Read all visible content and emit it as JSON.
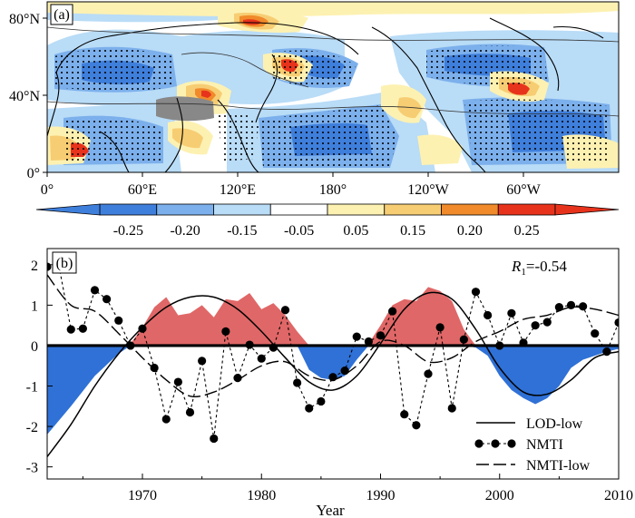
{
  "chart_data": [
    {
      "type": "heatmap",
      "panel_label": "(a)",
      "lat_tick_labels": [
        "0°",
        "40°N",
        "80°N"
      ],
      "lon_tick_labels": [
        "0°",
        "60°E",
        "120°E",
        "180°",
        "120°W",
        "60°W"
      ],
      "colorbar_labels": [
        "-0.25",
        "-0.20",
        "-0.15",
        "-0.05",
        "0.05",
        "0.15",
        "0.20",
        "0.25"
      ],
      "colorbar_colors": [
        "#3f7fdc",
        "#7cb0ec",
        "#b9dcf7",
        "#ffffff",
        "#fdf1b2",
        "#f7cd73",
        "#f08a2b",
        "#e8331c"
      ],
      "colors": {
        "land_outline": "#000000",
        "missing": "#888888",
        "stipple": "#000000"
      }
    },
    {
      "type": "line",
      "panel_label": "(b)",
      "annotation": {
        "prefix": "R",
        "subscript": "1",
        "text": "=-0.54"
      },
      "xlabel": "Year",
      "xlim": [
        1962,
        2010
      ],
      "ylim": [
        -3.3,
        2.4
      ],
      "x_tick_labels": [
        "1970",
        "1980",
        "1990",
        "2000",
        "2010"
      ],
      "y_tick_labels": [
        "-3",
        "-2",
        "-1",
        "0",
        "1",
        "2"
      ],
      "legend": [
        "LOD-low",
        "NMTI",
        "NMTI-low"
      ],
      "colors": {
        "positive_fill": "#e06767",
        "negative_fill": "#2f71d6",
        "line": "#000000"
      },
      "series": [
        {
          "name": "NMTI",
          "x": [
            1962,
            1963,
            1964,
            1965,
            1966,
            1967,
            1968,
            1969,
            1970,
            1971,
            1972,
            1973,
            1974,
            1975,
            1976,
            1977,
            1978,
            1979,
            1980,
            1981,
            1982,
            1983,
            1984,
            1985,
            1986,
            1987,
            1988,
            1989,
            1990,
            1991,
            1992,
            1993,
            1994,
            1995,
            1996,
            1997,
            1998,
            1999,
            2000,
            2001,
            2002,
            2003,
            2004,
            2005,
            2006,
            2007,
            2008,
            2009,
            2010
          ],
          "values": [
            1.95,
            1.95,
            0.4,
            0.42,
            1.37,
            1.15,
            0.62,
            0.0,
            0.42,
            -0.55,
            -1.82,
            -0.9,
            -1.65,
            -0.38,
            -2.3,
            0.35,
            -0.8,
            0.02,
            -0.32,
            -0.05,
            0.88,
            -0.92,
            -1.55,
            -1.38,
            -0.78,
            -0.62,
            0.22,
            0.1,
            0.25,
            0.85,
            -1.7,
            -1.97,
            -0.7,
            0.45,
            -1.55,
            0.15,
            1.33,
            0.75,
            0.0,
            0.8,
            0.07,
            0.5,
            0.58,
            0.95,
            1.0,
            0.97,
            0.3,
            -0.15,
            0.57
          ]
        },
        {
          "name": "NMTI-low",
          "x": [
            1962,
            1964,
            1966,
            1968,
            1970,
            1972,
            1974,
            1976,
            1978,
            1980,
            1982,
            1984,
            1986,
            1988,
            1990,
            1992,
            1994,
            1996,
            1998,
            2000,
            2002,
            2004,
            2006,
            2008,
            2010
          ],
          "values": [
            1.75,
            1.0,
            0.85,
            0.3,
            -0.3,
            -0.85,
            -1.25,
            -1.15,
            -0.85,
            -0.5,
            -0.4,
            -0.75,
            -0.85,
            -0.5,
            0.1,
            0.0,
            -0.4,
            -0.3,
            0.1,
            0.35,
            0.65,
            0.75,
            0.95,
            0.9,
            0.75
          ]
        },
        {
          "name": "LOD-low",
          "x": [
            1962,
            1964,
            1966,
            1968,
            1970,
            1972,
            1974,
            1976,
            1978,
            1980,
            1982,
            1984,
            1986,
            1988,
            1990,
            1992,
            1994,
            1996,
            1998,
            2000,
            2002,
            2004,
            2006,
            2008,
            2010
          ],
          "values": [
            -2.75,
            -1.95,
            -1.0,
            -0.2,
            0.45,
            0.95,
            1.2,
            1.2,
            0.9,
            0.35,
            -0.3,
            -0.9,
            -1.1,
            -0.75,
            0.05,
            0.9,
            1.3,
            1.15,
            0.4,
            -0.55,
            -1.15,
            -1.2,
            -0.85,
            -0.3,
            -0.15
          ]
        },
        {
          "name": "LOD shading",
          "x": [
            1962,
            1964,
            1966,
            1968,
            1969,
            1970,
            1971,
            1972,
            1973,
            1974,
            1975,
            1976,
            1977,
            1978,
            1979,
            1980,
            1981,
            1982,
            1983,
            1984,
            1985,
            1986,
            1987,
            1988,
            1989,
            1990,
            1991,
            1992,
            1993,
            1994,
            1995,
            1996,
            1997,
            1998,
            1999,
            2000,
            2001,
            2002,
            2003,
            2004,
            2005,
            2006,
            2007,
            2008,
            2009,
            2010
          ],
          "values": [
            -2.2,
            -1.5,
            -0.75,
            -0.2,
            0.05,
            0.45,
            0.95,
            1.2,
            0.75,
            0.8,
            1.0,
            0.7,
            1.15,
            1.1,
            1.3,
            0.9,
            1.05,
            0.75,
            0.35,
            -0.6,
            -0.8,
            -0.85,
            -0.75,
            -0.35,
            0.05,
            0.5,
            1.0,
            1.15,
            1.1,
            1.45,
            1.35,
            1.1,
            0.4,
            -0.05,
            -0.25,
            -0.75,
            -1.1,
            -1.3,
            -1.45,
            -1.3,
            -1.0,
            -0.55,
            -0.35,
            -0.25,
            -0.15,
            -0.08
          ]
        }
      ]
    }
  ]
}
